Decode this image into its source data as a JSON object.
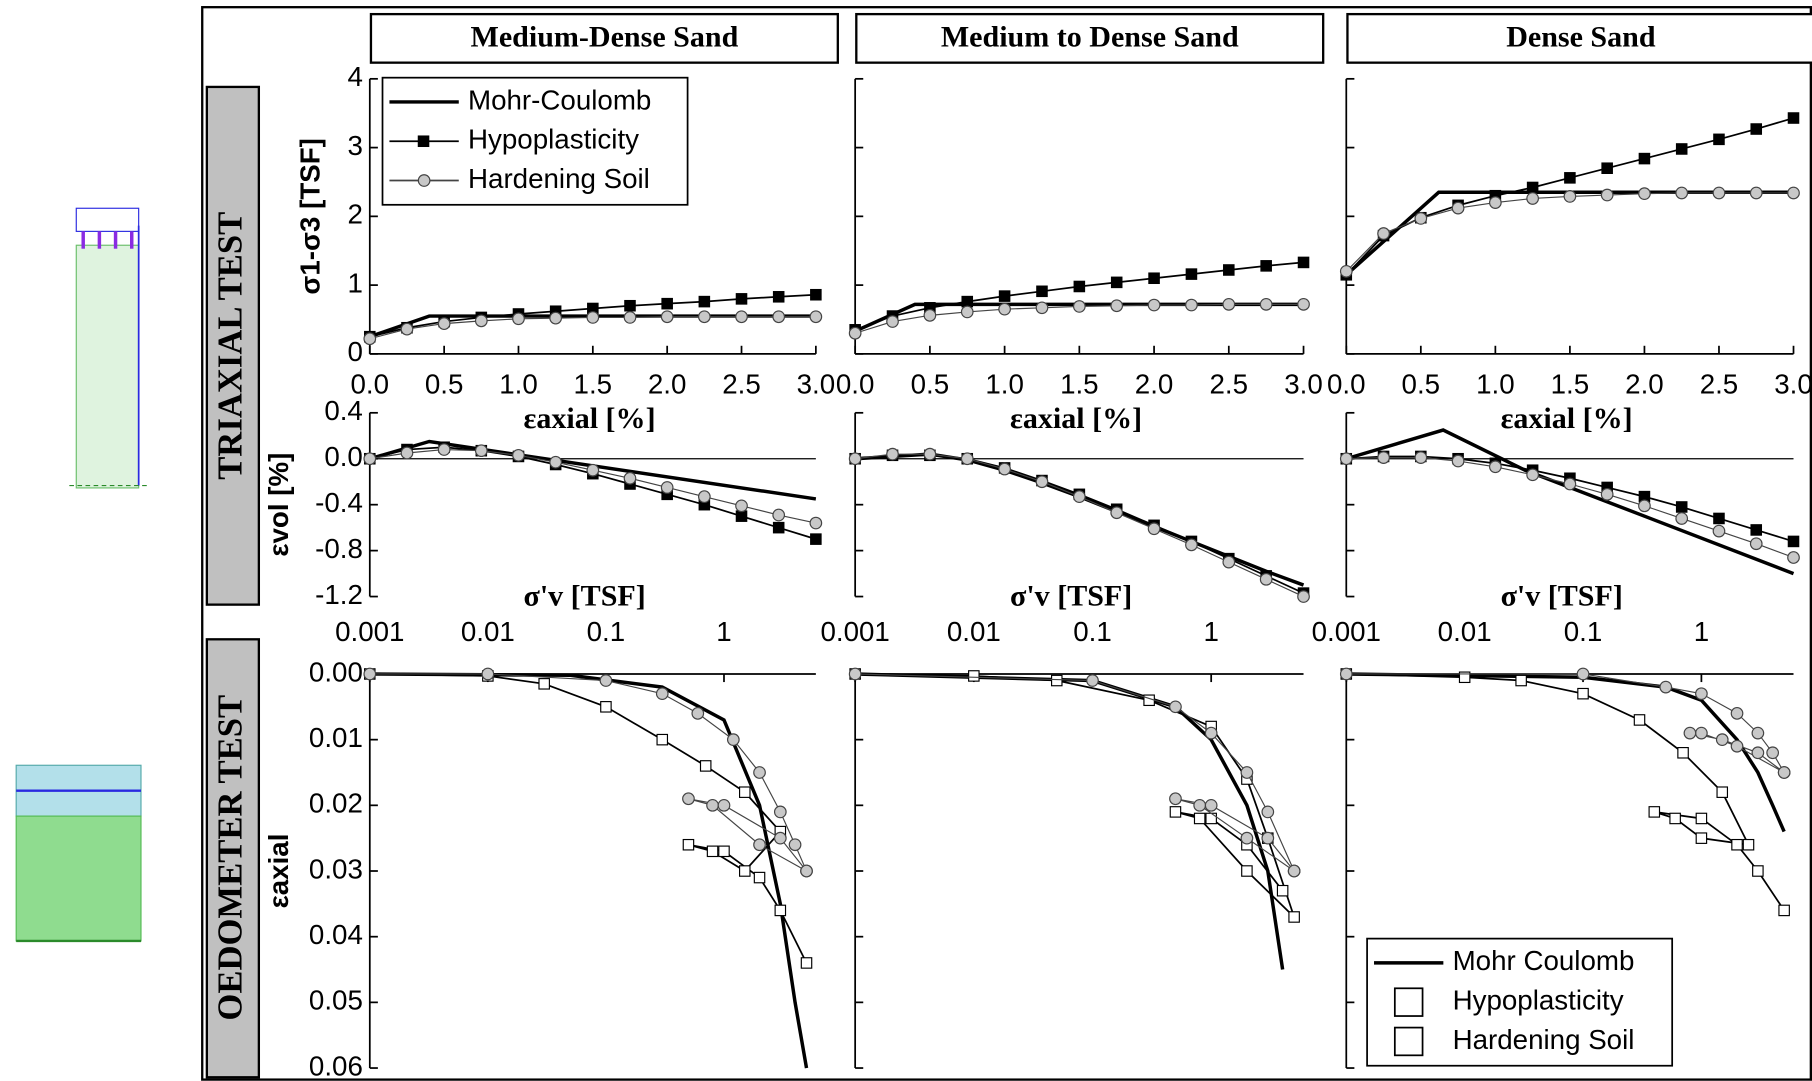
{
  "row_labels": [
    "TRIAXIAL TEST",
    "OEDOMETER TEST"
  ],
  "chart_data": [
    {
      "type": "line",
      "title": "Medium-Dense Sand",
      "xlabel": "εaxial [%]",
      "ylabel": "σ1-σ3 [TSF]",
      "legend": "upper left",
      "xlim": [
        0,
        3
      ],
      "ylim": [
        0,
        4
      ],
      "xticks": [
        {
          "value": 0,
          "label": "0.0"
        },
        0.5,
        {
          "value": 1,
          "label": "1.0"
        },
        1.5,
        {
          "value": 2,
          "label": "2.0"
        },
        2.5,
        {
          "value": 3,
          "label": "3.0"
        }
      ],
      "yticks": [
        0,
        1,
        2,
        3,
        4
      ],
      "series": [
        {
          "name": "Mohr-Coulomb",
          "color": "#000000",
          "marker": null,
          "x": [
            0,
            0.4,
            3
          ],
          "values": [
            0.25,
            0.55,
            0.55
          ]
        },
        {
          "name": "Hypoplasticity",
          "color": "#000000",
          "marker": "square",
          "marker_fill": "#000000",
          "x": [
            0,
            0.25,
            0.5,
            0.75,
            1,
            1.25,
            1.5,
            1.75,
            2,
            2.25,
            2.5,
            2.75,
            3
          ],
          "values": [
            0.25,
            0.38,
            0.47,
            0.53,
            0.58,
            0.62,
            0.66,
            0.7,
            0.73,
            0.76,
            0.8,
            0.83,
            0.86
          ]
        },
        {
          "name": "Hardening Soil",
          "color": "#444444",
          "marker": "circle",
          "marker_fill": "#c8c8c8",
          "x": [
            0,
            0.25,
            0.5,
            0.75,
            1,
            1.25,
            1.5,
            1.75,
            2,
            2.25,
            2.5,
            2.75,
            3
          ],
          "values": [
            0.22,
            0.36,
            0.44,
            0.48,
            0.51,
            0.52,
            0.53,
            0.53,
            0.54,
            0.54,
            0.54,
            0.54,
            0.54
          ]
        }
      ]
    },
    {
      "type": "line",
      "title": "Medium to Dense Sand",
      "xlabel": "εaxial [%]",
      "xlim": [
        0,
        3
      ],
      "ylim": [
        0,
        4
      ],
      "xticks": [
        {
          "value": 0,
          "label": "0.0"
        },
        0.5,
        {
          "value": 1,
          "label": "1.0"
        },
        1.5,
        {
          "value": 2,
          "label": "2.0"
        },
        2.5,
        {
          "value": 3,
          "label": "3.0"
        }
      ],
      "yticks": [
        0,
        1,
        2,
        3,
        4
      ],
      "series": [
        {
          "color": "#000000",
          "marker": null,
          "x": [
            0,
            0.4,
            3
          ],
          "values": [
            0.33,
            0.72,
            0.72
          ]
        },
        {
          "color": "#000000",
          "marker": "square",
          "marker_fill": "#000000",
          "x": [
            0,
            0.25,
            0.5,
            0.75,
            1,
            1.25,
            1.5,
            1.75,
            2,
            2.25,
            2.5,
            2.75,
            3
          ],
          "values": [
            0.35,
            0.55,
            0.67,
            0.76,
            0.84,
            0.91,
            0.98,
            1.04,
            1.1,
            1.16,
            1.22,
            1.28,
            1.33
          ]
        },
        {
          "color": "#444444",
          "marker": "circle",
          "marker_fill": "#c8c8c8",
          "x": [
            0,
            0.25,
            0.5,
            0.75,
            1,
            1.25,
            1.5,
            1.75,
            2,
            2.25,
            2.5,
            2.75,
            3
          ],
          "values": [
            0.3,
            0.47,
            0.56,
            0.61,
            0.65,
            0.67,
            0.69,
            0.7,
            0.71,
            0.71,
            0.72,
            0.72,
            0.72
          ]
        }
      ]
    },
    {
      "type": "line",
      "title": "Dense Sand",
      "xlabel": "εaxial [%]",
      "xlim": [
        0,
        3
      ],
      "ylim": [
        0,
        4
      ],
      "xticks": [
        {
          "value": 0,
          "label": "0.0"
        },
        0.5,
        {
          "value": 1,
          "label": "1.0"
        },
        1.5,
        {
          "value": 2,
          "label": "2.0"
        },
        2.5,
        {
          "value": 3,
          "label": "3.0"
        }
      ],
      "yticks": [
        0,
        1,
        2,
        3,
        4
      ],
      "series": [
        {
          "color": "#000000",
          "marker": null,
          "x": [
            0,
            0.62,
            3
          ],
          "values": [
            1.15,
            2.35,
            2.35
          ]
        },
        {
          "color": "#000000",
          "marker": "square",
          "marker_fill": "#000000",
          "x": [
            0,
            0.25,
            0.5,
            0.75,
            1,
            1.25,
            1.5,
            1.75,
            2,
            2.25,
            2.5,
            2.75,
            3
          ],
          "values": [
            1.15,
            1.72,
            1.98,
            2.16,
            2.3,
            2.42,
            2.56,
            2.7,
            2.84,
            2.98,
            3.12,
            3.27,
            3.43
          ]
        },
        {
          "color": "#444444",
          "marker": "circle",
          "marker_fill": "#c8c8c8",
          "x": [
            0,
            0.25,
            0.5,
            0.75,
            1,
            1.25,
            1.5,
            1.75,
            2,
            2.25,
            2.5,
            2.75,
            3
          ],
          "values": [
            1.2,
            1.75,
            1.97,
            2.12,
            2.2,
            2.26,
            2.29,
            2.31,
            2.33,
            2.34,
            2.34,
            2.34,
            2.34
          ]
        }
      ]
    },
    {
      "type": "line",
      "ylabel": "εvol [%]",
      "xlim": [
        0,
        3
      ],
      "ylim": [
        -1.2,
        0.4
      ],
      "yticks": [
        0.4,
        {
          "value": 0,
          "label": "0.0"
        },
        -0.4,
        -0.8,
        -1.2
      ],
      "series": [
        {
          "color": "#000000",
          "marker": null,
          "x": [
            0,
            0.4,
            3
          ],
          "values": [
            0,
            0.15,
            -0.35
          ]
        },
        {
          "color": "#000000",
          "marker": "square",
          "marker_fill": "#000000",
          "x": [
            0,
            0.25,
            0.5,
            0.75,
            1,
            1.25,
            1.5,
            1.75,
            2,
            2.25,
            2.5,
            2.75,
            3
          ],
          "values": [
            0,
            0.08,
            0.1,
            0.07,
            0.02,
            -0.05,
            -0.13,
            -0.22,
            -0.31,
            -0.4,
            -0.5,
            -0.6,
            -0.7
          ]
        },
        {
          "color": "#444444",
          "marker": "circle",
          "marker_fill": "#c8c8c8",
          "x": [
            0,
            0.25,
            0.5,
            0.75,
            1,
            1.25,
            1.5,
            1.75,
            2,
            2.25,
            2.5,
            2.75,
            3
          ],
          "values": [
            0,
            0.05,
            0.08,
            0.07,
            0.03,
            -0.03,
            -0.1,
            -0.17,
            -0.25,
            -0.33,
            -0.41,
            -0.49,
            -0.56
          ]
        }
      ]
    },
    {
      "type": "line",
      "xlim": [
        0,
        3
      ],
      "ylim": [
        -1.2,
        0.4
      ],
      "yticks": [
        0.4,
        0,
        -0.4,
        -0.8,
        -1.2
      ],
      "series": [
        {
          "color": "#000000",
          "marker": null,
          "x": [
            0,
            0.25,
            0.5,
            0.75,
            1,
            1.25,
            1.5,
            1.75,
            2,
            2.25,
            2.5,
            2.75,
            3
          ],
          "values": [
            0,
            0.02,
            0.04,
            -0.01,
            -0.1,
            -0.21,
            -0.33,
            -0.46,
            -0.59,
            -0.72,
            -0.85,
            -0.98,
            -1.1
          ]
        },
        {
          "color": "#000000",
          "marker": "square",
          "marker_fill": "#000000",
          "x": [
            0,
            0.25,
            0.5,
            0.75,
            1,
            1.25,
            1.5,
            1.75,
            2,
            2.25,
            2.5,
            2.75,
            3
          ],
          "values": [
            0,
            0.03,
            0.03,
            0,
            -0.08,
            -0.19,
            -0.31,
            -0.44,
            -0.58,
            -0.72,
            -0.87,
            -1.02,
            -1.17
          ]
        },
        {
          "color": "#444444",
          "marker": "circle",
          "marker_fill": "#c8c8c8",
          "x": [
            0,
            0.25,
            0.5,
            0.75,
            1,
            1.25,
            1.5,
            1.75,
            2,
            2.25,
            2.5,
            2.75,
            3
          ],
          "values": [
            0,
            0.04,
            0.04,
            0,
            -0.09,
            -0.2,
            -0.33,
            -0.47,
            -0.61,
            -0.75,
            -0.9,
            -1.05,
            -1.2
          ]
        }
      ]
    },
    {
      "type": "line",
      "xlim": [
        0,
        3
      ],
      "ylim": [
        -1.2,
        0.4
      ],
      "yticks": [
        0.4,
        0,
        -0.4,
        -0.8,
        -1.2
      ],
      "series": [
        {
          "color": "#000000",
          "marker": null,
          "x": [
            0,
            0.65,
            1.2,
            3
          ],
          "values": [
            0,
            0.25,
            -0.1,
            -1.0
          ]
        },
        {
          "color": "#000000",
          "marker": "square",
          "marker_fill": "#000000",
          "x": [
            0,
            0.25,
            0.5,
            0.75,
            1,
            1.25,
            1.5,
            1.75,
            2,
            2.25,
            2.5,
            2.75,
            3
          ],
          "values": [
            0,
            0.02,
            0.02,
            0,
            -0.04,
            -0.1,
            -0.17,
            -0.25,
            -0.33,
            -0.42,
            -0.52,
            -0.62,
            -0.72
          ]
        },
        {
          "color": "#444444",
          "marker": "circle",
          "marker_fill": "#c8c8c8",
          "x": [
            0,
            0.25,
            0.5,
            0.75,
            1,
            1.25,
            1.5,
            1.75,
            2,
            2.25,
            2.5,
            2.75,
            3
          ],
          "values": [
            0,
            0.01,
            0.01,
            -0.02,
            -0.07,
            -0.14,
            -0.22,
            -0.31,
            -0.41,
            -0.52,
            -0.63,
            -0.74,
            -0.86
          ]
        }
      ]
    },
    {
      "type": "line",
      "xlabel": "σ'v [TSF]",
      "ylabel": "εaxial",
      "xscale": "log",
      "y_reversed": true,
      "xlim": [
        0.001,
        6
      ],
      "ylim": [
        0,
        0.06
      ],
      "xticks": [
        0.001,
        0.01,
        0.1,
        1
      ],
      "yticks": [
        {
          "value": 0,
          "label": "0.00"
        },
        0.01,
        0.02,
        0.03,
        0.04,
        0.05,
        0.06
      ],
      "series": [
        {
          "color": "#000000",
          "marker": null,
          "x": [
            0.001,
            0.05,
            0.3,
            1,
            2,
            3,
            4,
            5
          ],
          "values": [
            0,
            0.0002,
            0.002,
            0.007,
            0.02,
            0.035,
            0.05,
            0.06
          ]
        },
        {
          "color": "#000000",
          "marker": "square",
          "marker_fill": "#ffffff",
          "x": [
            0.001,
            0.01,
            0.03,
            0.1,
            0.3,
            0.7,
            1.5,
            3,
            1.5,
            0.8,
            0.5,
            1,
            2,
            3,
            5
          ],
          "values": [
            0,
            0.0003,
            0.0015,
            0.005,
            0.01,
            0.014,
            0.018,
            0.024,
            0.03,
            0.027,
            0.026,
            0.027,
            0.031,
            0.036,
            0.044
          ]
        },
        {
          "color": "#444444",
          "marker": "circle",
          "marker_fill": "#c8c8c8",
          "x": [
            0.001,
            0.01,
            0.1,
            0.3,
            0.6,
            1.2,
            2,
            3,
            4,
            5,
            2,
            0.8,
            0.5,
            1,
            3,
            5
          ],
          "values": [
            0,
            0,
            0.001,
            0.003,
            0.006,
            0.01,
            0.015,
            0.021,
            0.026,
            0.03,
            0.026,
            0.02,
            0.019,
            0.02,
            0.025,
            0.03
          ]
        }
      ]
    },
    {
      "type": "line",
      "xlabel": "σ'v [TSF]",
      "xscale": "log",
      "y_reversed": true,
      "xlim": [
        0.001,
        6
      ],
      "ylim": [
        0,
        0.06
      ],
      "xticks": [
        0.001,
        0.01,
        0.1,
        1
      ],
      "yticks": [
        0,
        0.01,
        0.02,
        0.03,
        0.04,
        0.05,
        0.06
      ],
      "series": [
        {
          "color": "#000000",
          "marker": null,
          "x": [
            0.001,
            0.1,
            0.5,
            1,
            2,
            3,
            4
          ],
          "values": [
            0,
            0.001,
            0.005,
            0.01,
            0.02,
            0.03,
            0.045
          ]
        },
        {
          "color": "#000000",
          "marker": "square",
          "marker_fill": "#ffffff",
          "x": [
            0.001,
            0.01,
            0.05,
            0.3,
            1,
            2,
            3,
            5,
            2,
            0.8,
            0.5,
            1,
            2,
            4
          ],
          "values": [
            0,
            0.0003,
            0.001,
            0.004,
            0.008,
            0.016,
            0.025,
            0.037,
            0.03,
            0.022,
            0.021,
            0.022,
            0.026,
            0.033
          ]
        },
        {
          "color": "#444444",
          "marker": "circle",
          "marker_fill": "#c8c8c8",
          "x": [
            0.001,
            0.1,
            0.5,
            1,
            2,
            3,
            5,
            2,
            0.8,
            0.5,
            1,
            3,
            5
          ],
          "values": [
            0,
            0.001,
            0.005,
            0.009,
            0.015,
            0.021,
            0.03,
            0.025,
            0.02,
            0.019,
            0.02,
            0.025,
            0.03
          ]
        }
      ]
    },
    {
      "type": "line",
      "xlabel": "σ'v [TSF]",
      "xscale": "log",
      "y_reversed": true,
      "legend": "lower right",
      "xlim": [
        0.001,
        6
      ],
      "ylim": [
        0,
        0.06
      ],
      "xticks": [
        0.001,
        0.01,
        0.1,
        1
      ],
      "yticks": [
        0,
        0.01,
        0.02,
        0.03,
        0.04,
        0.05,
        0.06
      ],
      "series": [
        {
          "name": "Mohr Coulomb",
          "color": "#000000",
          "marker": null,
          "x": [
            0.001,
            0.1,
            0.5,
            1,
            2,
            3,
            4,
            5
          ],
          "values": [
            0,
            0.0005,
            0.002,
            0.004,
            0.01,
            0.015,
            0.02,
            0.024
          ]
        },
        {
          "name": "Hypoplasticity",
          "color": "#000000",
          "marker": "square",
          "marker_fill": "#ffffff",
          "x": [
            0.001,
            0.01,
            0.03,
            0.1,
            0.3,
            0.7,
            1.5,
            2.5,
            1,
            0.6,
            0.4,
            1,
            2,
            3,
            5
          ],
          "values": [
            0,
            0.0005,
            0.001,
            0.003,
            0.007,
            0.012,
            0.018,
            0.026,
            0.025,
            0.022,
            0.021,
            0.022,
            0.026,
            0.03,
            0.036
          ]
        },
        {
          "name": "Hardening Soil",
          "color": "#444444",
          "marker": "circle",
          "marker_fill": "#c8c8c8",
          "x": [
            0.001,
            0.1,
            0.5,
            1,
            2,
            3,
            4,
            5,
            2,
            1,
            0.8,
            1.5,
            3,
            5
          ],
          "values": [
            0,
            0,
            0.002,
            0.003,
            0.006,
            0.009,
            0.012,
            0.015,
            0.011,
            0.009,
            0.009,
            0.01,
            0.012,
            0.015
          ]
        }
      ]
    }
  ]
}
